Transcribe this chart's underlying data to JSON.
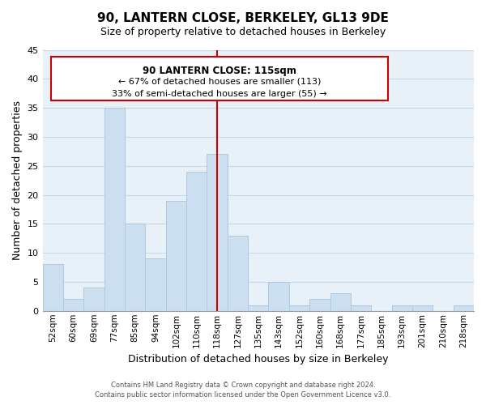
{
  "title": "90, LANTERN CLOSE, BERKELEY, GL13 9DE",
  "subtitle": "Size of property relative to detached houses in Berkeley",
  "xlabel": "Distribution of detached houses by size in Berkeley",
  "ylabel": "Number of detached properties",
  "bin_labels": [
    "52sqm",
    "60sqm",
    "69sqm",
    "77sqm",
    "85sqm",
    "94sqm",
    "102sqm",
    "110sqm",
    "118sqm",
    "127sqm",
    "135sqm",
    "143sqm",
    "152sqm",
    "160sqm",
    "168sqm",
    "177sqm",
    "185sqm",
    "193sqm",
    "201sqm",
    "210sqm",
    "218sqm"
  ],
  "bar_heights": [
    8,
    2,
    4,
    35,
    15,
    9,
    19,
    24,
    27,
    13,
    1,
    5,
    1,
    2,
    3,
    1,
    0,
    1,
    1,
    0,
    1
  ],
  "bar_color": "#ccdff0",
  "bar_edge_color": "#aec8e0",
  "grid_color": "#c8d8e8",
  "background_color": "#e8f0f8",
  "property_line_x": 8,
  "property_line_color": "#cc0000",
  "annotation_title": "90 LANTERN CLOSE: 115sqm",
  "annotation_line1": "← 67% of detached houses are smaller (113)",
  "annotation_line2": "33% of semi-detached houses are larger (55) →",
  "annotation_box_color": "#ffffff",
  "annotation_box_edge_color": "#cc0000",
  "ylim": [
    0,
    45
  ],
  "yticks": [
    0,
    5,
    10,
    15,
    20,
    25,
    30,
    35,
    40,
    45
  ],
  "footer_line1": "Contains HM Land Registry data © Crown copyright and database right 2024.",
  "footer_line2": "Contains public sector information licensed under the Open Government Licence v3.0."
}
